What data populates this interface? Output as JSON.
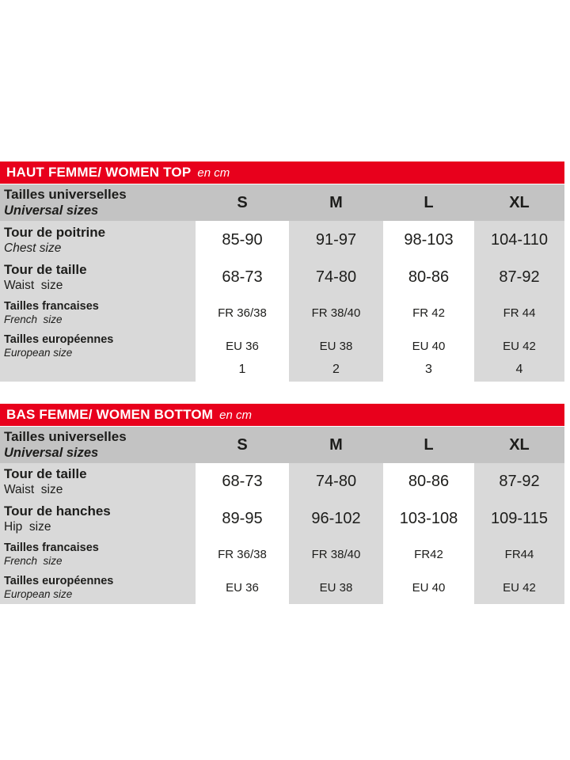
{
  "colors": {
    "header_bar_red": "#e8001c",
    "subheader_gray": "#c3c3c3",
    "stripe_gray": "#d9d9d9",
    "text": "#1d1d1b",
    "bar_text": "#ffffff"
  },
  "tables": [
    {
      "title": "HAUT FEMME/ WOMEN TOP",
      "unit": "en cm",
      "header": {
        "label_fr": "Tailles universelles",
        "label_en": "Universal sizes",
        "sizes": [
          "S",
          "M",
          "L",
          "XL"
        ]
      },
      "rows": [
        {
          "label_fr": "Tour de poitrine",
          "label_en": "Chest size",
          "values": [
            "85-90",
            "91-97",
            "98-103",
            "104-110"
          ]
        },
        {
          "label_fr": "Tour de taille",
          "label_en": "Waist  size",
          "values": [
            "68-73",
            "74-80",
            "80-86",
            "87-92"
          ]
        },
        {
          "label_fr": "Tailles francaises",
          "label_en": "French  size",
          "values": [
            "FR 36/38",
            "FR 38/40",
            "FR 42",
            "FR 44"
          ]
        },
        {
          "label_fr": "Tailles européennes",
          "label_en": "European size",
          "values": [
            "EU 36",
            "EU 38",
            "EU 40",
            "EU 42"
          ]
        },
        {
          "label_fr": "",
          "label_en": "",
          "values": [
            "1",
            "2",
            "3",
            "4"
          ]
        }
      ]
    },
    {
      "title": "BAS FEMME/ WOMEN BOTTOM",
      "unit": "en cm",
      "header": {
        "label_fr": "Tailles universelles",
        "label_en": "Universal sizes",
        "sizes": [
          "S",
          "M",
          "L",
          "XL"
        ]
      },
      "rows": [
        {
          "label_fr": "Tour de taille",
          "label_en": "Waist  size",
          "values": [
            "68-73",
            "74-80",
            "80-86",
            "87-92"
          ]
        },
        {
          "label_fr": "Tour de hanches",
          "label_en": "Hip  size",
          "values": [
            "89-95",
            "96-102",
            "103-108",
            "109-115"
          ]
        },
        {
          "label_fr": "Tailles francaises",
          "label_en": "French  size",
          "values": [
            "FR 36/38",
            "FR 38/40",
            "FR42",
            "FR44"
          ]
        },
        {
          "label_fr": "Tailles européennes",
          "label_en": "European size",
          "values": [
            "EU 36",
            "EU 38",
            "EU 40",
            "EU 42"
          ]
        }
      ]
    }
  ]
}
